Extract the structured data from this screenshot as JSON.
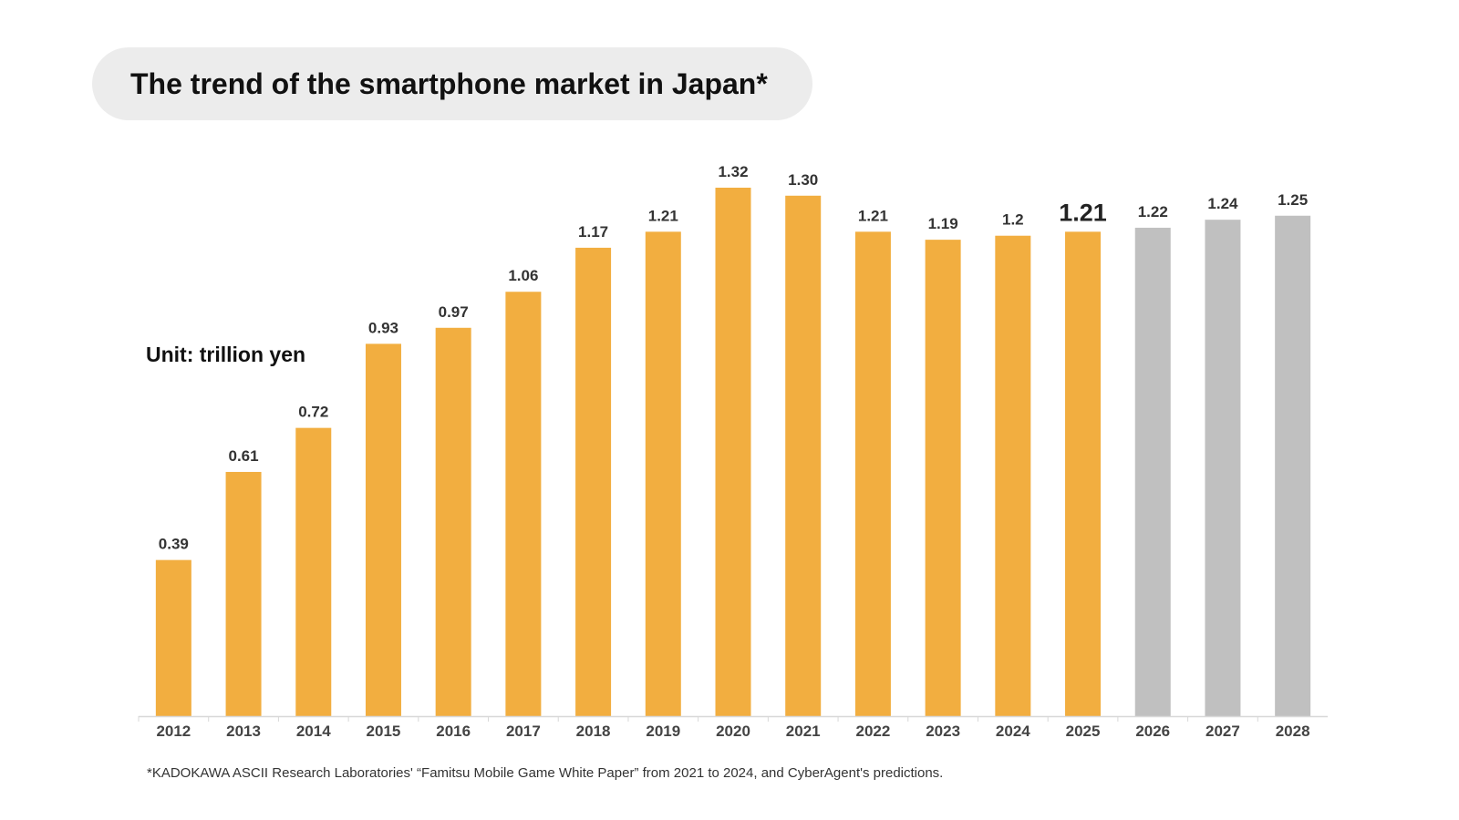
{
  "title": "The trend of the smartphone market in Japan*",
  "unit_label": "Unit: trillion yen",
  "footnote": "*KADOKAWA ASCII Research Laboratories' “Famitsu Mobile Game White Paper” from 2021 to 2024, and CyberAgent's predictions.",
  "colors": {
    "actual": "#f2ae40",
    "forecast": "#c0c0c0",
    "axis": "#d8d8d8",
    "label": "#333333",
    "tick": "#444444"
  },
  "chart_data": {
    "type": "bar",
    "categories": [
      "2012",
      "2013",
      "2014",
      "2015",
      "2016",
      "2017",
      "2018",
      "2019",
      "2020",
      "2021",
      "2022",
      "2023",
      "2024",
      "2025",
      "2026",
      "2027",
      "2028"
    ],
    "values": [
      0.39,
      0.61,
      0.72,
      0.93,
      0.97,
      1.06,
      1.17,
      1.21,
      1.32,
      1.3,
      1.21,
      1.19,
      1.2,
      1.21,
      1.22,
      1.24,
      1.25
    ],
    "labels": [
      "0.39",
      "0.61",
      "0.72",
      "0.93",
      "0.97",
      "1.06",
      "1.17",
      "1.21",
      "1.32",
      "1.30",
      "1.21",
      "1.19",
      "1.2",
      "1.21",
      "1.22",
      "1.24",
      "1.25"
    ],
    "forecast": [
      false,
      false,
      false,
      false,
      false,
      false,
      false,
      false,
      false,
      false,
      false,
      false,
      false,
      false,
      true,
      true,
      true
    ],
    "highlight_index": 13,
    "title": "The trend of the smartphone market in Japan*",
    "ylabel": "Unit: trillion yen",
    "ylim": [
      0,
      1.32
    ],
    "grid": false,
    "legend": "none"
  }
}
